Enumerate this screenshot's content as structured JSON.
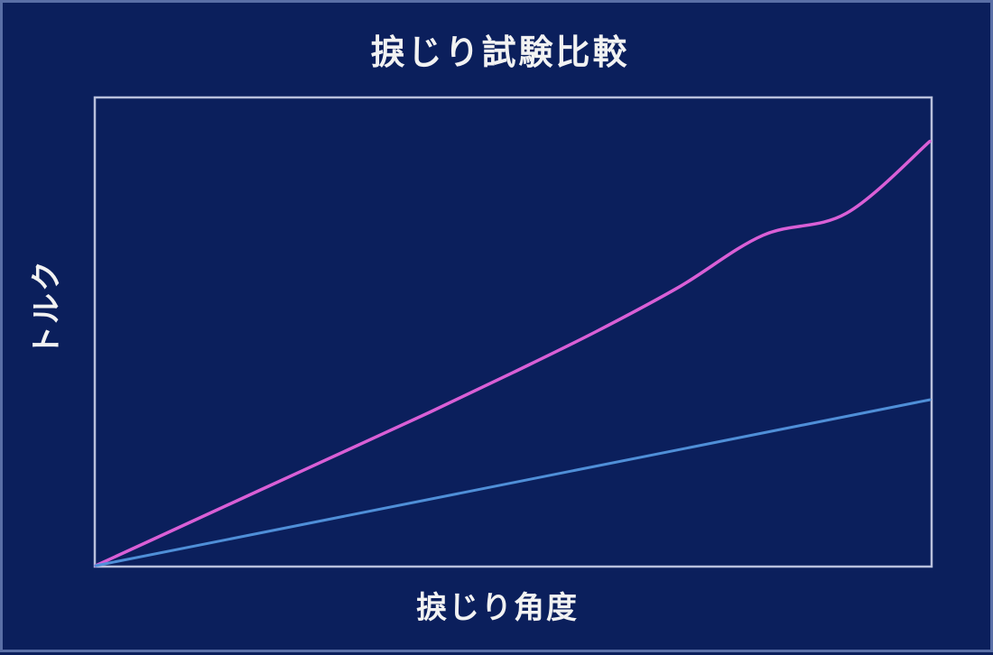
{
  "chart_data": {
    "type": "line",
    "title": "捩じり試験比較",
    "xlabel": "捩じり角度",
    "ylabel": "トルク",
    "xlim": [
      0,
      1
    ],
    "ylim": [
      0,
      1
    ],
    "grid": false,
    "legend": "none",
    "colors": {
      "background": "#0b1f5c",
      "frame": "#b9c0dc",
      "text": "#f2f2f2"
    },
    "series": [
      {
        "color": "#d95fd6",
        "x": [
          0,
          0.1,
          0.2,
          0.3,
          0.4,
          0.5,
          0.6,
          0.7,
          0.8,
          0.9,
          1.0
        ],
        "y": [
          0,
          0.082,
          0.164,
          0.246,
          0.328,
          0.413,
          0.501,
          0.597,
          0.707,
          0.754,
          0.908
        ]
      },
      {
        "color": "#4f8fd8",
        "x": [
          0,
          1.0
        ],
        "y": [
          0,
          0.355
        ]
      }
    ]
  }
}
